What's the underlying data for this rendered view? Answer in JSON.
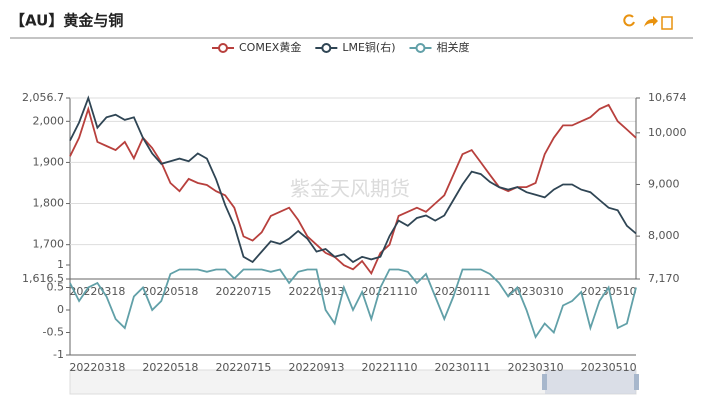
{
  "title": "【AU】黄金与铜",
  "watermark": "紫金天风期货",
  "chart_data": [
    {
      "type": "line",
      "categories": [
        null,
        null,
        null,
        "20220318",
        null,
        null,
        null,
        null,
        null,
        null,
        null,
        "20220518",
        null,
        null,
        null,
        null,
        null,
        null,
        null,
        "20220715",
        null,
        null,
        null,
        null,
        null,
        null,
        null,
        "20220913",
        null,
        null,
        null,
        null,
        null,
        null,
        null,
        "20221110",
        null,
        null,
        null,
        null,
        null,
        null,
        null,
        "20230111",
        null,
        null,
        null,
        null,
        null,
        null,
        null,
        "20230310",
        null,
        null,
        null,
        null,
        null,
        null,
        null,
        "20230510",
        null,
        null,
        null
      ],
      "series": [
        {
          "name": "COMEX黄金",
          "color": "#b8403d",
          "values": [
            1915,
            1960,
            2030,
            1950,
            1940,
            1930,
            1950,
            1910,
            1960,
            1935,
            1900,
            1850,
            1830,
            1860,
            1850,
            1845,
            1830,
            1820,
            1790,
            1720,
            1710,
            1730,
            1770,
            1780,
            1790,
            1760,
            1720,
            1700,
            1680,
            1670,
            1650,
            1640,
            1660,
            1630,
            1680,
            1700,
            1770,
            1780,
            1790,
            1780,
            1800,
            1820,
            1870,
            1920,
            1930,
            1900,
            1870,
            1840,
            1830,
            1840,
            1840,
            1850,
            1920,
            1960,
            1990,
            1990,
            2000,
            2010,
            2030,
            2040,
            2000,
            1980,
            1960
          ]
        },
        {
          "name": "LME铜(右)",
          "color": "#2f4554",
          "axis": "y2",
          "values": [
            9850,
            10200,
            10674,
            10100,
            10300,
            10350,
            10250,
            10300,
            9900,
            9600,
            9400,
            9450,
            9500,
            9450,
            9600,
            9500,
            9100,
            8600,
            8200,
            7600,
            7500,
            7700,
            7900,
            7850,
            7950,
            8100,
            7950,
            7700,
            7750,
            7600,
            7650,
            7500,
            7600,
            7550,
            7600,
            8000,
            8300,
            8200,
            8350,
            8400,
            8300,
            8400,
            8700,
            9000,
            9250,
            9200,
            9050,
            8950,
            8900,
            8950,
            8850,
            8800,
            8750,
            8900,
            9000,
            9000,
            8900,
            8850,
            8700,
            8550,
            8500,
            8200,
            8050
          ]
        }
      ],
      "ylim": [
        1616.5,
        2056.7
      ],
      "yticks": [
        {
          "value": 1616.5,
          "label": "1,616.5"
        },
        {
          "value": 1700,
          "label": "1,700"
        },
        {
          "value": 1800,
          "label": "1,800"
        },
        {
          "value": 1900,
          "label": "1,900"
        },
        {
          "value": 2000,
          "label": "2,000"
        },
        {
          "value": 2056.7,
          "label": "2,056.7"
        }
      ],
      "y2lim": [
        7170,
        10674
      ],
      "y2ticks": [
        {
          "value": 7170,
          "label": "7,170"
        },
        {
          "value": 8000,
          "label": "8,000"
        },
        {
          "value": 9000,
          "label": "9,000"
        },
        {
          "value": 10000,
          "label": "10,000"
        },
        {
          "value": 10674,
          "label": "10,674"
        }
      ],
      "grid": true
    },
    {
      "type": "line",
      "categories": [
        null,
        null,
        null,
        "20220318",
        null,
        null,
        null,
        null,
        null,
        null,
        null,
        "20220518",
        null,
        null,
        null,
        null,
        null,
        null,
        null,
        "20220715",
        null,
        null,
        null,
        null,
        null,
        null,
        null,
        "20220913",
        null,
        null,
        null,
        null,
        null,
        null,
        null,
        "20221110",
        null,
        null,
        null,
        null,
        null,
        null,
        null,
        "20230111",
        null,
        null,
        null,
        null,
        null,
        null,
        null,
        "20230310",
        null,
        null,
        null,
        null,
        null,
        null,
        null,
        "20230510",
        null,
        null,
        null
      ],
      "series": [
        {
          "name": "相关度",
          "color": "#61a0a8",
          "values": [
            0.6,
            0.2,
            0.5,
            0.6,
            0.3,
            -0.2,
            -0.4,
            0.3,
            0.5,
            0.0,
            0.2,
            0.8,
            0.9,
            0.9,
            0.9,
            0.85,
            0.9,
            0.9,
            0.7,
            0.9,
            0.9,
            0.9,
            0.85,
            0.9,
            0.6,
            0.85,
            0.9,
            0.9,
            0.0,
            -0.3,
            0.5,
            0.0,
            0.4,
            -0.2,
            0.5,
            0.9,
            0.9,
            0.85,
            0.6,
            0.8,
            0.3,
            -0.2,
            0.3,
            0.9,
            0.9,
            0.9,
            0.8,
            0.6,
            0.3,
            0.5,
            0.0,
            -0.6,
            -0.3,
            -0.5,
            0.1,
            0.2,
            0.4,
            -0.4,
            0.2,
            0.5,
            -0.4,
            -0.3,
            0.5
          ]
        }
      ],
      "ylim": [
        -1,
        1
      ],
      "yticks": [
        -1,
        -0.5,
        0,
        0.5,
        1
      ],
      "grid": false
    }
  ]
}
